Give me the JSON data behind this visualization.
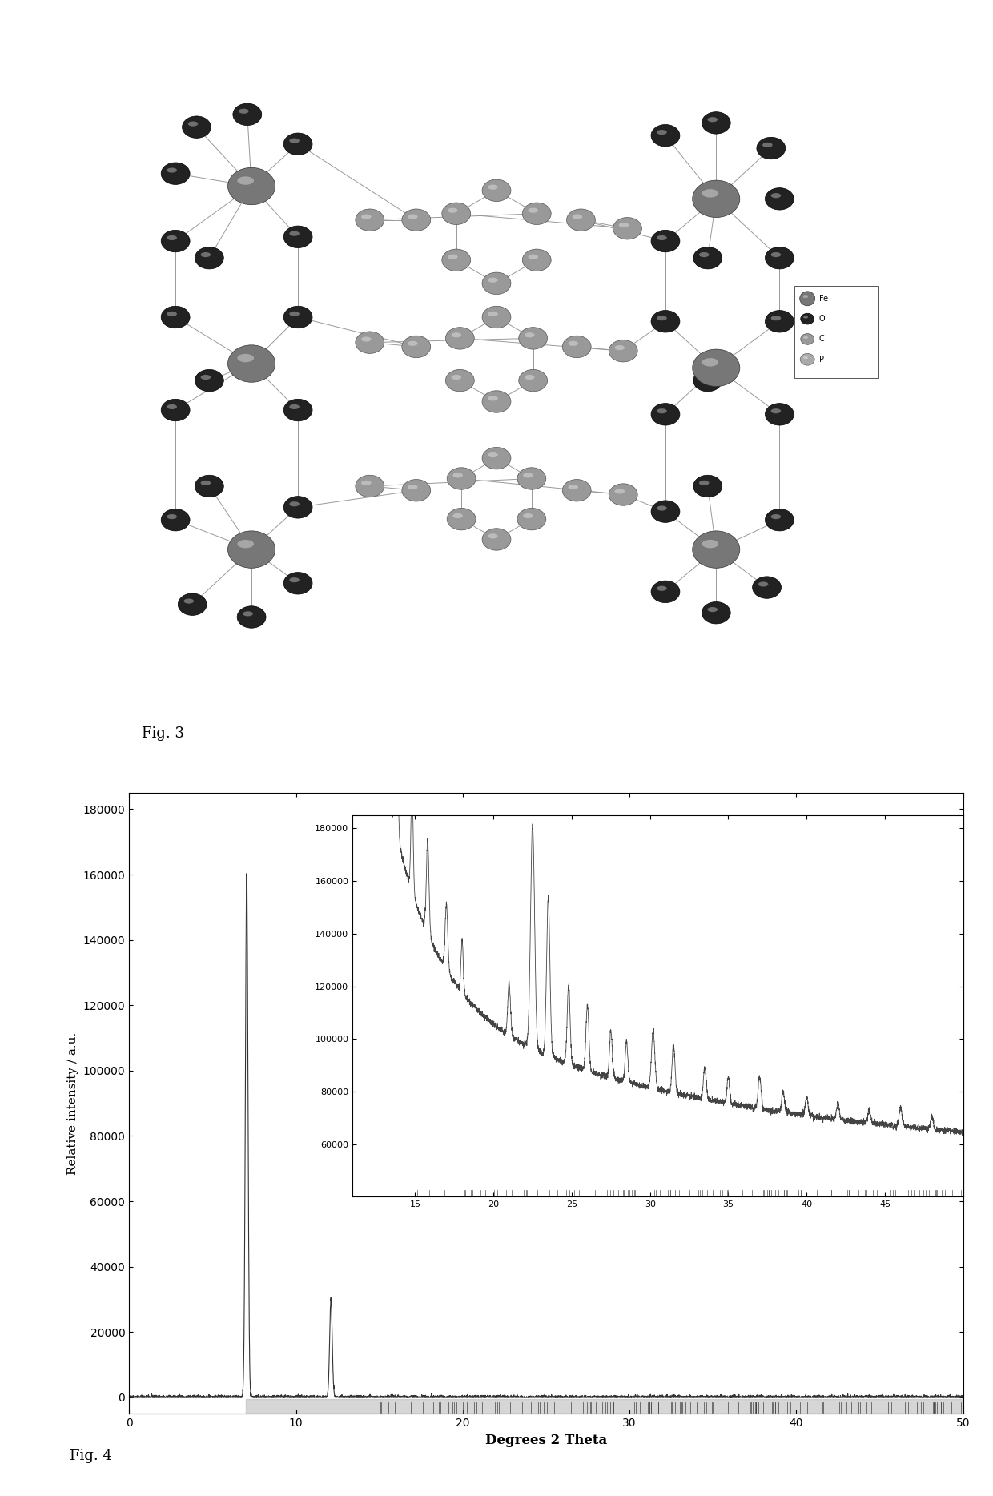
{
  "fig3_label": "Fig. 3",
  "fig4_label": "Fig. 4",
  "main_plot": {
    "xlabel": "Degrees 2 Theta",
    "ylabel": "Relative intensity / a.u.",
    "xlim": [
      0,
      50
    ],
    "ylim": [
      -5000,
      185000
    ],
    "yticks": [
      0,
      20000,
      40000,
      60000,
      80000,
      100000,
      120000,
      140000,
      160000,
      180000
    ],
    "xticks": [
      0,
      10,
      20,
      30,
      40,
      50
    ]
  },
  "inset_plot": {
    "xlim": [
      11,
      50
    ],
    "ylim": [
      40000,
      185000
    ],
    "xticks": [
      15,
      20,
      25,
      30,
      35,
      40,
      45
    ],
    "yticks": [
      60000,
      80000,
      100000,
      120000,
      140000,
      160000,
      180000
    ]
  },
  "fe_color": "#777777",
  "fe_dark": "#333333",
  "o_color": "#222222",
  "o_dark": "#000000",
  "c_color": "#999999",
  "c_dark": "#555555",
  "p_color": "#aaaaaa",
  "p_dark": "#666666",
  "bond_color": "#999999",
  "bond_lw": 0.7
}
